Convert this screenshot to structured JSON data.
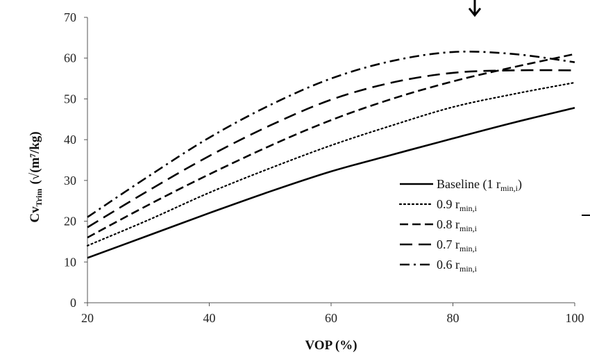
{
  "chart_data": {
    "type": "line",
    "title": "",
    "xlabel": "VOP (%)",
    "ylabel_main": "Cv",
    "ylabel_sub": "Trim",
    "ylabel_unit": "(√(m⁷/kg)",
    "xlim": [
      20,
      100
    ],
    "ylim": [
      0,
      70
    ],
    "x_ticks": [
      20,
      40,
      60,
      80,
      100
    ],
    "y_ticks": [
      0,
      10,
      20,
      30,
      40,
      50,
      60,
      70
    ],
    "grid": false,
    "legend_placement": "right",
    "x": [
      20,
      30,
      40,
      50,
      60,
      70,
      80,
      90,
      100
    ],
    "series": [
      {
        "name": "Baseline (1 r",
        "name_sub": "min,i",
        "name_suffix": ")",
        "style": "solid",
        "values": [
          11.0,
          16.5,
          22.0,
          27.3,
          32.2,
          36.3,
          40.3,
          44.2,
          47.8
        ]
      },
      {
        "name": "0.9 r",
        "name_sub": "min,i",
        "name_suffix": "",
        "style": "dotted",
        "values": [
          14.0,
          20.3,
          27.0,
          33.0,
          38.6,
          43.5,
          48.0,
          51.2,
          54.0
        ]
      },
      {
        "name": "0.8 r",
        "name_sub": "min,i",
        "name_suffix": "",
        "style": "dashed",
        "values": [
          16.0,
          24.0,
          31.5,
          38.5,
          44.8,
          50.0,
          54.3,
          57.8,
          61.0
        ]
      },
      {
        "name": "0.7 r",
        "name_sub": "min,i",
        "name_suffix": "",
        "style": "longdash",
        "values": [
          18.5,
          27.5,
          36.0,
          43.5,
          49.8,
          54.0,
          56.4,
          57.0,
          57.0
        ]
      },
      {
        "name": "0.6 r",
        "name_sub": "min,i",
        "name_suffix": "",
        "style": "dashdot",
        "values": [
          21.0,
          31.0,
          40.5,
          48.5,
          55.0,
          59.3,
          61.5,
          61.0,
          59.0
        ]
      }
    ]
  },
  "annotations": {
    "arrow_icon": "down-arrow-icon",
    "dash_mark_icon": "dash-mark-icon"
  }
}
